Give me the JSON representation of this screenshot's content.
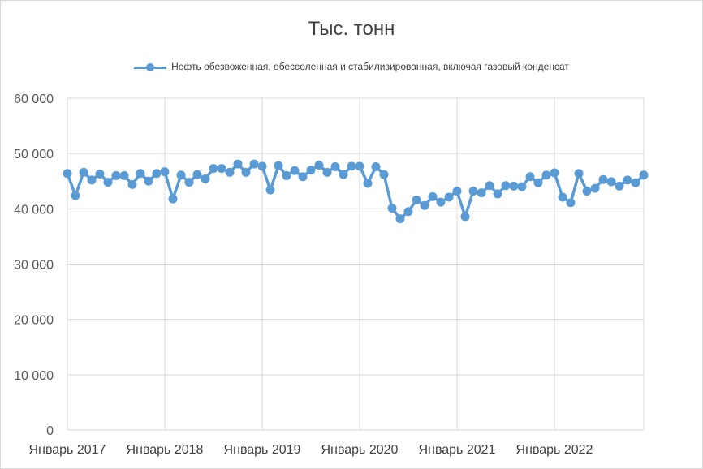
{
  "chart_data": {
    "type": "line",
    "title": "Тыс. тонн",
    "xlabel": "",
    "ylabel": "",
    "ylim": [
      0,
      60000
    ],
    "yticks": [
      0,
      10000,
      20000,
      30000,
      40000,
      50000,
      60000
    ],
    "ytick_labels": [
      "0",
      "10 000",
      "20 000",
      "30 000",
      "40 000",
      "50 000",
      "60 000"
    ],
    "xtick_labels": [
      "Январь 2017",
      "Январь 2018",
      "Январь 2019",
      "Январь 2020",
      "Январь 2021",
      "Январь 2022"
    ],
    "xtick_indices": [
      0,
      12,
      24,
      36,
      48,
      60
    ],
    "grid": true,
    "legend_position": "top",
    "colors": {
      "series": "#5b9bd5",
      "grid": "#d9d9d9"
    },
    "series": [
      {
        "name": "Нефть обезвоженная,  обессоленная  и стабилизированная,  включая газовый конденсат",
        "values": [
          46400,
          42400,
          46600,
          45200,
          46300,
          44800,
          46000,
          46000,
          44400,
          46400,
          45000,
          46400,
          46700,
          41800,
          46100,
          44800,
          46200,
          45400,
          47300,
          47300,
          46600,
          48100,
          46600,
          48100,
          47700,
          43400,
          47800,
          46000,
          46900,
          45800,
          47000,
          47900,
          46600,
          47600,
          46200,
          47700,
          47700,
          44600,
          47600,
          46200,
          40100,
          38200,
          39500,
          41600,
          40600,
          42200,
          41200,
          42100,
          43200,
          38600,
          43200,
          42900,
          44200,
          42700,
          44200,
          44100,
          44000,
          45800,
          44700,
          46100,
          46500,
          42100,
          41100,
          46400,
          43200,
          43700,
          45300,
          44900,
          44100,
          45200,
          44700,
          46100
        ]
      }
    ]
  }
}
